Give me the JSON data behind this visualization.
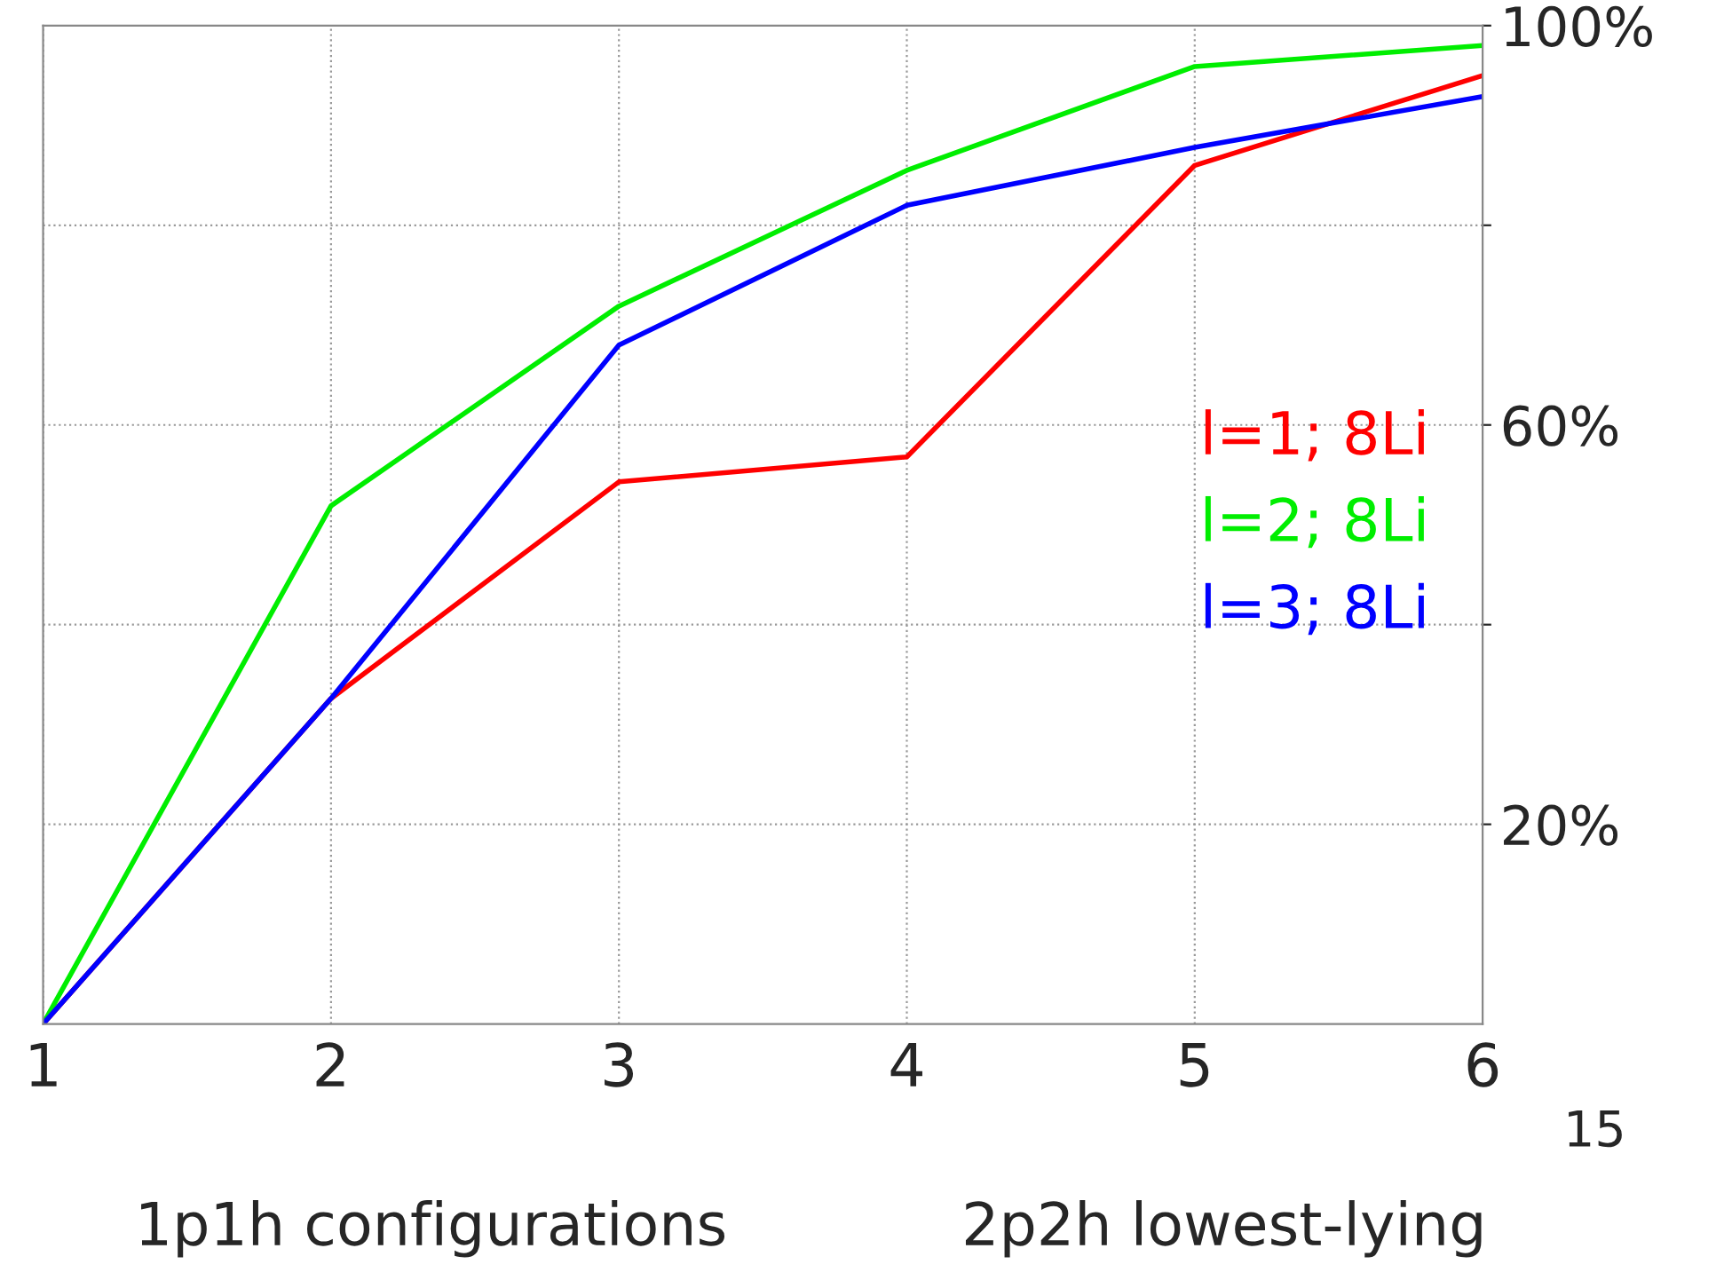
{
  "chart_data": {
    "type": "line",
    "x": [
      1,
      2,
      3,
      4,
      5,
      6
    ],
    "xlim": [
      1,
      6
    ],
    "xticks": [
      1,
      2,
      3,
      4,
      5,
      6
    ],
    "ylim": [
      0,
      100
    ],
    "yticks": [
      {
        "value": 20,
        "label": "20%"
      },
      {
        "value": 40,
        "label": null
      },
      {
        "value": 60,
        "label": "60%"
      },
      {
        "value": 80,
        "label": null
      },
      {
        "value": 100,
        "label": "100%"
      }
    ],
    "series": [
      {
        "name": "l=1; 8Li",
        "color": "#ff0000",
        "values": [
          0,
          32.6,
          54.3,
          56.8,
          86,
          95
        ]
      },
      {
        "name": "l=2; 8Li",
        "color": "#00ee00",
        "values": [
          0,
          51.9,
          71.9,
          85.5,
          95.9,
          98
        ]
      },
      {
        "name": "l=3; 8Li",
        "color": "#0000ff",
        "values": [
          0,
          32.6,
          68,
          82,
          87.8,
          92.9
        ]
      }
    ],
    "grid": true,
    "legend": "center right",
    "annotations": [
      "1p1h configurations",
      "2p2h lowest-lying",
      "15"
    ]
  }
}
